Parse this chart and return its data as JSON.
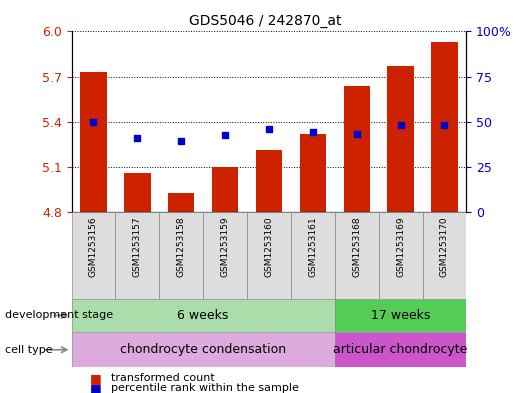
{
  "title": "GDS5046 / 242870_at",
  "samples": [
    "GSM1253156",
    "GSM1253157",
    "GSM1253158",
    "GSM1253159",
    "GSM1253160",
    "GSM1253161",
    "GSM1253168",
    "GSM1253169",
    "GSM1253170"
  ],
  "bar_values": [
    5.73,
    5.06,
    4.93,
    5.1,
    5.21,
    5.32,
    5.64,
    5.77,
    5.93
  ],
  "percentile_values": [
    5.4,
    5.29,
    5.27,
    5.31,
    5.35,
    5.33,
    5.32,
    5.38,
    5.38
  ],
  "y_min": 4.8,
  "y_max": 6.0,
  "y_ticks": [
    4.8,
    5.1,
    5.4,
    5.7,
    6.0
  ],
  "y2_ticks": [
    0,
    25,
    50,
    75,
    100
  ],
  "y2_tick_labels": [
    "0",
    "25",
    "50",
    "75",
    "100%"
  ],
  "bar_color": "#cc2200",
  "dot_color": "#0000cc",
  "bar_width": 0.6,
  "group1_samples": 6,
  "group2_samples": 3,
  "dev_stage_label": "development stage",
  "dev_stage_6w": "6 weeks",
  "dev_stage_17w": "17 weeks",
  "cell_type_label": "cell type",
  "cell_type_1": "chondrocyte condensation",
  "cell_type_2": "articular chondrocyte",
  "legend_bar": "transformed count",
  "legend_dot": "percentile rank within the sample",
  "bar_color_hex": "#cc2200",
  "dot_color_hex": "#0000cc",
  "tick_color_left": "#cc2200",
  "tick_color_right": "#0000cc",
  "dev_stage_color_6w": "#aaddaa",
  "dev_stage_color_17w": "#55cc55",
  "cell_type_color_1": "#ddaadd",
  "cell_type_color_2": "#cc55cc",
  "sample_box_color": "#dddddd"
}
